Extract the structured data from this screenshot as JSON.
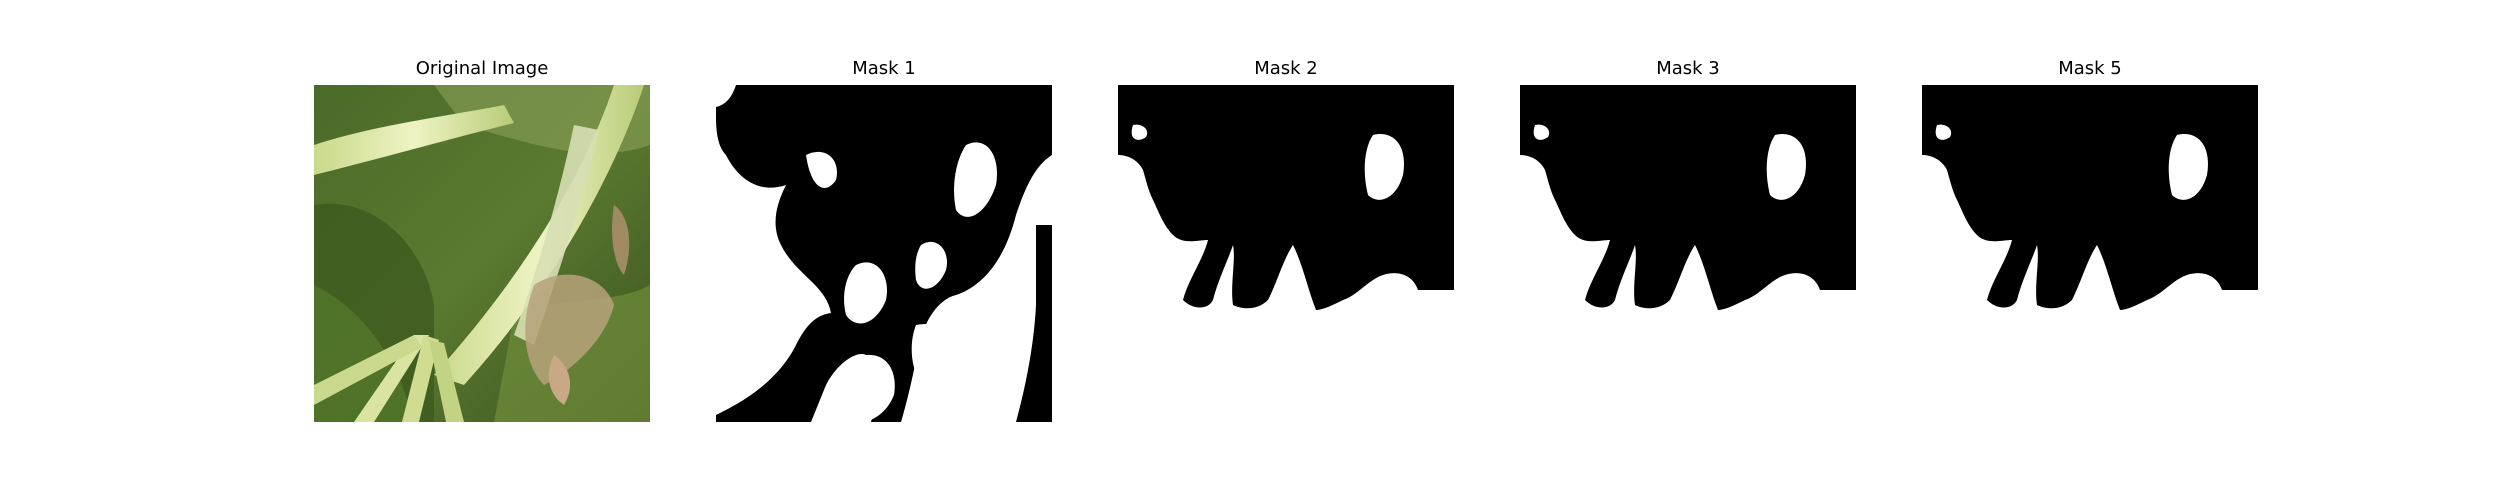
{
  "panels": [
    {
      "title": "Original Image"
    },
    {
      "title": "Mask 1"
    },
    {
      "title": "Mask 2"
    },
    {
      "title": "Mask 3"
    },
    {
      "title": "Mask 5"
    }
  ],
  "colors": {
    "mask_background": "#000000",
    "mask_foreground": "#ffffff",
    "leaf_dark": "#3f5a22",
    "leaf_mid": "#6b8a35",
    "stem_light": "#dfe8a8"
  }
}
